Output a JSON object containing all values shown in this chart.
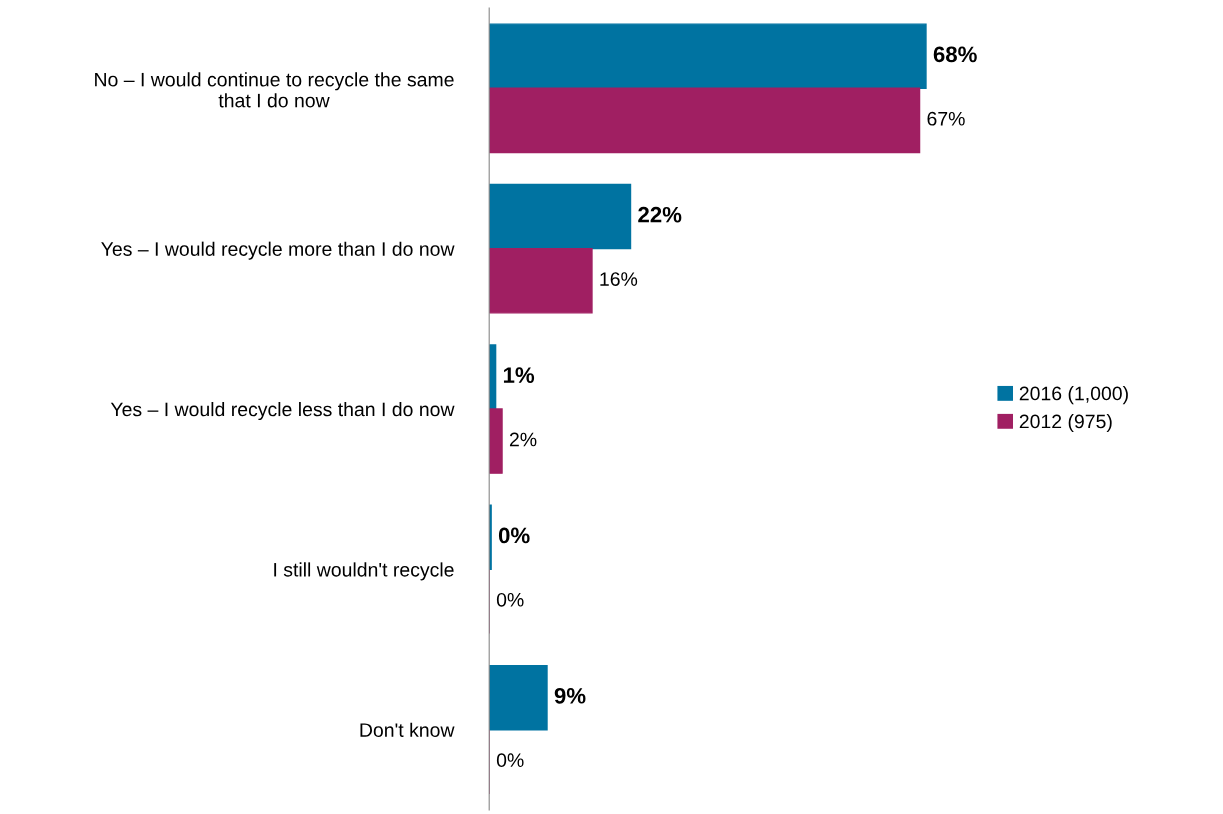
{
  "chart_data": {
    "type": "bar",
    "orientation": "horizontal",
    "categories": [
      "No – I would continue to recycle the same that I do now",
      "Yes – I would recycle more than I do now",
      "Yes – I would recycle less than I do now",
      "I still wouldn't recycle",
      "Don't know"
    ],
    "series": [
      {
        "name": "2016 (1,000)",
        "color": "#0073a1",
        "values": [
          68,
          22,
          1,
          0.3,
          9
        ],
        "value_labels": [
          "68%",
          "22%",
          "1%",
          "0%",
          "9%"
        ]
      },
      {
        "name": "2012 (975)",
        "color": "#a01f62",
        "values": [
          67,
          16,
          2,
          0,
          0
        ],
        "value_labels": [
          "67%",
          "16%",
          "2%",
          "0%",
          "0%"
        ]
      }
    ],
    "tick_labels": "y",
    "grid": false,
    "legend": "right"
  }
}
